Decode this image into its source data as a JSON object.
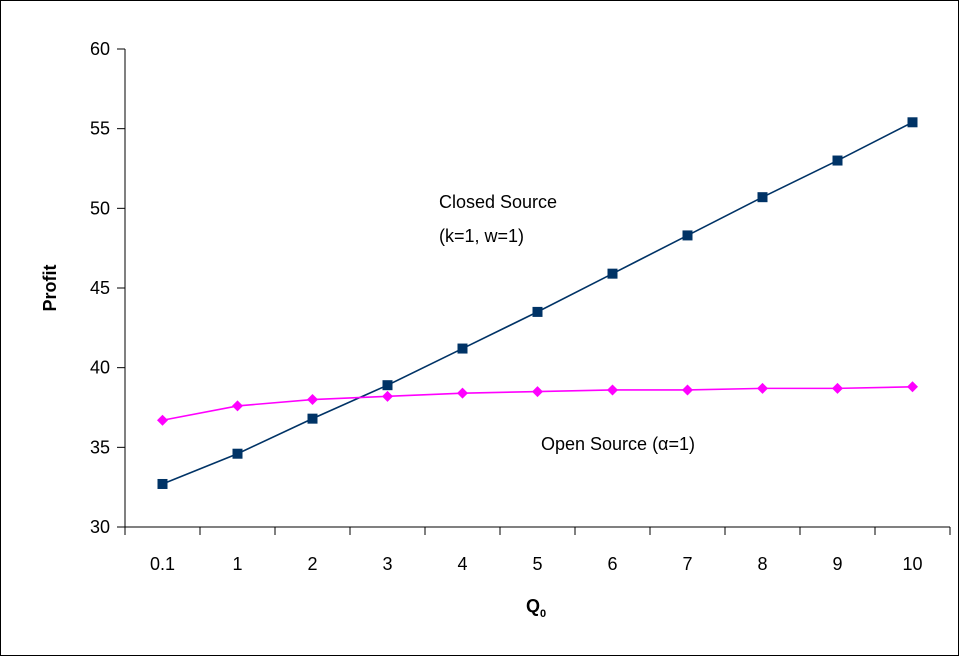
{
  "chart_data": {
    "type": "line",
    "title": "",
    "xlabel": "Q",
    "xlabel_subscript": "0",
    "ylabel": "Profit",
    "categories": [
      "0.1",
      "1",
      "2",
      "3",
      "4",
      "5",
      "6",
      "7",
      "8",
      "9",
      "10"
    ],
    "ylim": [
      30,
      60
    ],
    "yticks": [
      "30",
      "35",
      "40",
      "45",
      "50",
      "55",
      "60"
    ],
    "grid": false,
    "legend": "none",
    "series": [
      {
        "key": "closed",
        "color": "#003366",
        "marker": "square",
        "values": [
          32.7,
          34.6,
          36.8,
          38.9,
          41.2,
          43.5,
          45.9,
          48.3,
          50.7,
          53.0,
          55.4
        ]
      },
      {
        "key": "open",
        "color": "#ff00ff",
        "marker": "diamond",
        "values": [
          36.7,
          37.6,
          38.0,
          38.2,
          38.4,
          38.5,
          38.6,
          38.6,
          38.7,
          38.7,
          38.8
        ]
      }
    ],
    "annotations": [
      {
        "series": "closed",
        "line1": "Closed Source",
        "line2": "(k=1, w=1)"
      },
      {
        "series": "open",
        "line1": "Open Source (α=1)"
      }
    ]
  }
}
